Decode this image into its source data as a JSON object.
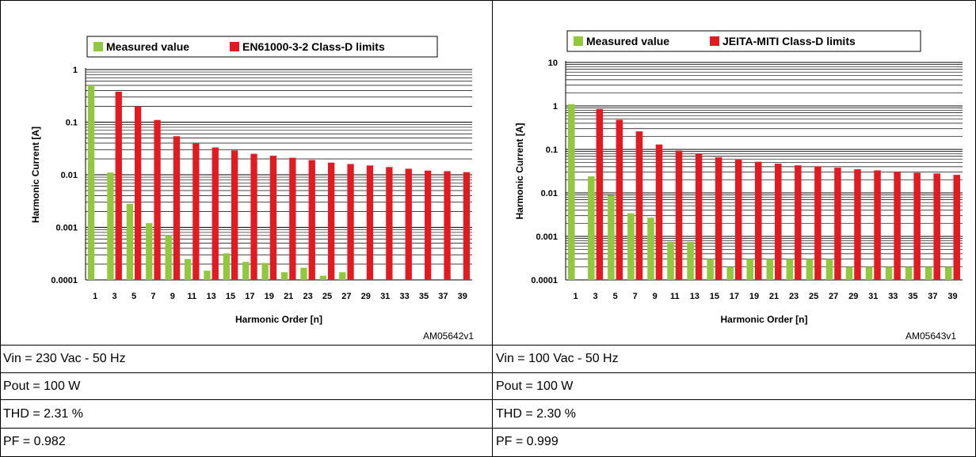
{
  "colors": {
    "measured": "#92c83e",
    "limit": "#e21b22",
    "grid": "#000000"
  },
  "chart_data": [
    {
      "type": "bar",
      "yscale": "log",
      "ylim": [
        0.0001,
        1
      ],
      "xlabel": "Harmonic Order [n]",
      "ylabel": "Harmonic Current [A]",
      "y_ticks": [
        "1",
        "0.1",
        "0.01",
        "0.001",
        "0.0001"
      ],
      "legend_position": "top",
      "categories": [
        "1",
        "3",
        "5",
        "7",
        "9",
        "11",
        "13",
        "15",
        "17",
        "19",
        "21",
        "23",
        "25",
        "27",
        "29",
        "31",
        "33",
        "35",
        "37",
        "39"
      ],
      "series": [
        {
          "name": "Measured value",
          "values": [
            0.5,
            0.011,
            0.0028,
            0.0012,
            0.0007,
            0.00025,
            0.00015,
            0.00032,
            0.00022,
            0.00021,
            0.00014,
            0.00017,
            0.00012,
            0.00014,
            null,
            null,
            null,
            null,
            null,
            null
          ]
        },
        {
          "name": "EN61000-3-2 Class-D limits",
          "values": [
            null,
            0.38,
            0.2,
            0.11,
            0.054,
            0.04,
            0.033,
            0.029,
            0.025,
            0.023,
            0.021,
            0.019,
            0.017,
            0.016,
            0.015,
            0.014,
            0.013,
            0.012,
            0.0117,
            0.0112
          ]
        }
      ]
    },
    {
      "type": "bar",
      "yscale": "log",
      "ylim": [
        0.0001,
        10
      ],
      "xlabel": "Harmonic Order [n]",
      "ylabel": "Harmonic Current [A]",
      "y_ticks": [
        "10",
        "1",
        "0.1",
        "0.01",
        "0.001",
        "0.0001"
      ],
      "legend_position": "top",
      "categories": [
        "1",
        "3",
        "5",
        "7",
        "9",
        "11",
        "13",
        "15",
        "17",
        "19",
        "21",
        "23",
        "25",
        "27",
        "29",
        "31",
        "33",
        "35",
        "37",
        "39"
      ],
      "series": [
        {
          "name": "Measured value",
          "values": [
            1.1,
            0.024,
            0.0088,
            0.0034,
            0.0027,
            0.00075,
            0.00075,
            0.0003,
            0.0002,
            0.0003,
            0.0003,
            0.0003,
            0.0003,
            0.0003,
            0.0002,
            0.0002,
            0.0002,
            0.0002,
            0.0002,
            0.0002
          ]
        },
        {
          "name": "JEITA-MITI Class-D limits",
          "values": [
            null,
            0.85,
            0.48,
            0.26,
            0.13,
            0.094,
            0.078,
            0.066,
            0.058,
            0.052,
            0.047,
            0.043,
            0.041,
            0.038,
            0.035,
            0.033,
            0.031,
            0.029,
            0.028,
            0.026
          ]
        }
      ]
    }
  ],
  "left": {
    "code": "AM05642v1",
    "params": [
      "Vin = 230 Vac - 50 Hz",
      "Pout = 100 W",
      "THD = 2.31 %",
      "PF = 0.982"
    ]
  },
  "right": {
    "code": "AM05643v1",
    "params": [
      "Vin = 100 Vac - 50 Hz",
      "Pout = 100 W",
      "THD = 2.30 %",
      "PF = 0.999"
    ]
  }
}
